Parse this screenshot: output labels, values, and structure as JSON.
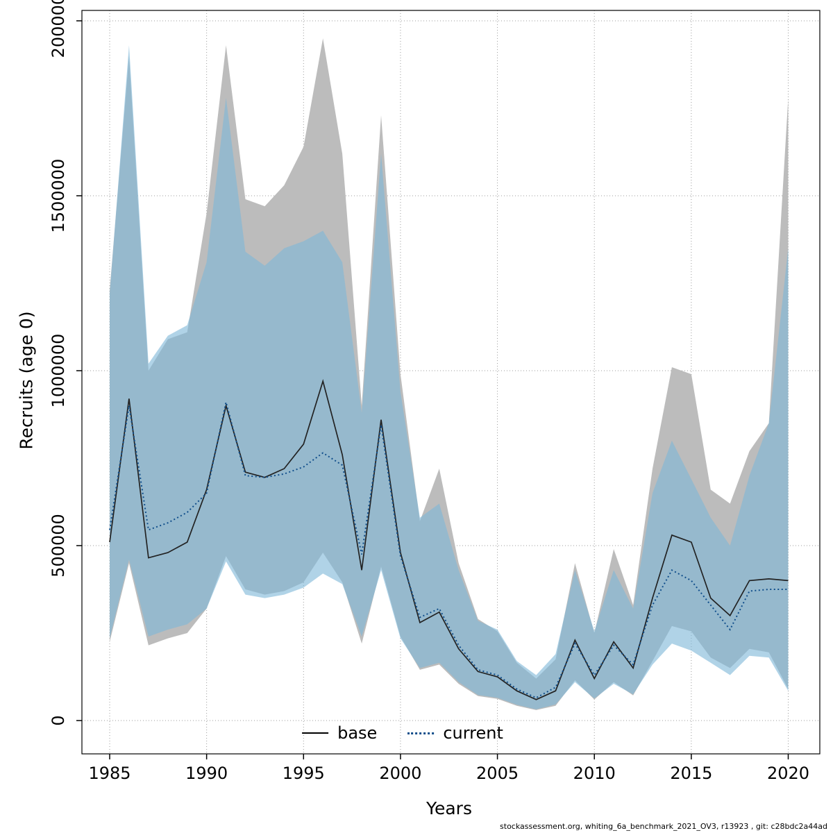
{
  "page": {
    "footer": "stockassessment.org, whiting_6a_benchmark_2021_OV3, r13923 , git: c28bdc2a44ad"
  },
  "chart_data": {
    "type": "area",
    "title": "",
    "xlabel": "Years",
    "ylabel": "Recruits (age 0)",
    "xlim": [
      1983.6,
      2021.6
    ],
    "ylim": [
      0,
      2000000
    ],
    "grid": true,
    "x_ticks": [
      1985,
      1990,
      1995,
      2000,
      2005,
      2010,
      2015,
      2020
    ],
    "y_ticks": [
      0,
      500000,
      1000000,
      1500000,
      2000000
    ],
    "y_tick_labels": [
      "0",
      "500000",
      "1000000",
      "1500000",
      "2000000"
    ],
    "legend": {
      "position": "bottom-center-inside",
      "entries": [
        {
          "label": "base",
          "line_style": "solid",
          "color": "#000000"
        },
        {
          "label": "current",
          "line_style": "dotted",
          "color": "#104e8b"
        }
      ]
    },
    "x": [
      1985,
      1986,
      1987,
      1988,
      1989,
      1990,
      1991,
      1992,
      1993,
      1994,
      1995,
      1996,
      1997,
      1998,
      1999,
      2000,
      2001,
      2002,
      2003,
      2004,
      2005,
      2006,
      2007,
      2008,
      2009,
      2010,
      2011,
      2012,
      2013,
      2014,
      2015,
      2016,
      2017,
      2018,
      2019,
      2020
    ],
    "series": [
      {
        "name": "base",
        "kind": "line-with-confidence-band",
        "line_color": "#222222",
        "line_style": "solid",
        "band_color": "#bcbcbc",
        "band_opacity": 1,
        "values": [
          510000,
          920000,
          465000,
          480000,
          510000,
          660000,
          900000,
          710000,
          695000,
          720000,
          790000,
          970000,
          760000,
          430000,
          860000,
          480000,
          280000,
          310000,
          205000,
          140000,
          125000,
          85000,
          60000,
          85000,
          230000,
          120000,
          225000,
          150000,
          350000,
          530000,
          510000,
          350000,
          300000,
          400000,
          405000,
          400000
        ],
        "lower": [
          225000,
          450000,
          215000,
          235000,
          250000,
          320000,
          470000,
          375000,
          360000,
          370000,
          395000,
          480000,
          395000,
          220000,
          440000,
          240000,
          145000,
          160000,
          105000,
          70000,
          62000,
          42000,
          30000,
          42000,
          115000,
          60000,
          110000,
          72000,
          170000,
          270000,
          255000,
          180000,
          150000,
          205000,
          195000,
          90000
        ],
        "upper": [
          1230000,
          1900000,
          1000000,
          1090000,
          1110000,
          1450000,
          1930000,
          1490000,
          1470000,
          1530000,
          1640000,
          1950000,
          1620000,
          900000,
          1730000,
          990000,
          570000,
          720000,
          450000,
          290000,
          255000,
          165000,
          120000,
          175000,
          450000,
          250000,
          490000,
          330000,
          720000,
          1010000,
          990000,
          660000,
          620000,
          770000,
          850000,
          1780000
        ]
      },
      {
        "name": "current",
        "kind": "line-with-confidence-band",
        "line_color": "#104e8b",
        "line_style": "dotted",
        "band_color": "#7fb8d8",
        "band_opacity": 0.62,
        "values": [
          545000,
          900000,
          545000,
          565000,
          595000,
          650000,
          910000,
          700000,
          695000,
          705000,
          725000,
          765000,
          730000,
          475000,
          845000,
          470000,
          295000,
          320000,
          215000,
          145000,
          130000,
          90000,
          65000,
          95000,
          220000,
          130000,
          215000,
          160000,
          330000,
          430000,
          400000,
          330000,
          260000,
          370000,
          375000,
          375000
        ],
        "lower": [
          235000,
          460000,
          240000,
          260000,
          275000,
          320000,
          455000,
          360000,
          350000,
          360000,
          380000,
          420000,
          390000,
          240000,
          430000,
          235000,
          150000,
          165000,
          110000,
          73000,
          65000,
          45000,
          32000,
          46000,
          110000,
          63000,
          105000,
          75000,
          160000,
          220000,
          200000,
          165000,
          130000,
          185000,
          180000,
          85000
        ],
        "upper": [
          1220000,
          1930000,
          1020000,
          1100000,
          1130000,
          1310000,
          1780000,
          1340000,
          1300000,
          1350000,
          1370000,
          1400000,
          1310000,
          880000,
          1620000,
          940000,
          580000,
          620000,
          430000,
          285000,
          260000,
          170000,
          130000,
          190000,
          430000,
          255000,
          430000,
          320000,
          650000,
          800000,
          690000,
          580000,
          500000,
          700000,
          850000,
          1350000
        ]
      }
    ]
  }
}
